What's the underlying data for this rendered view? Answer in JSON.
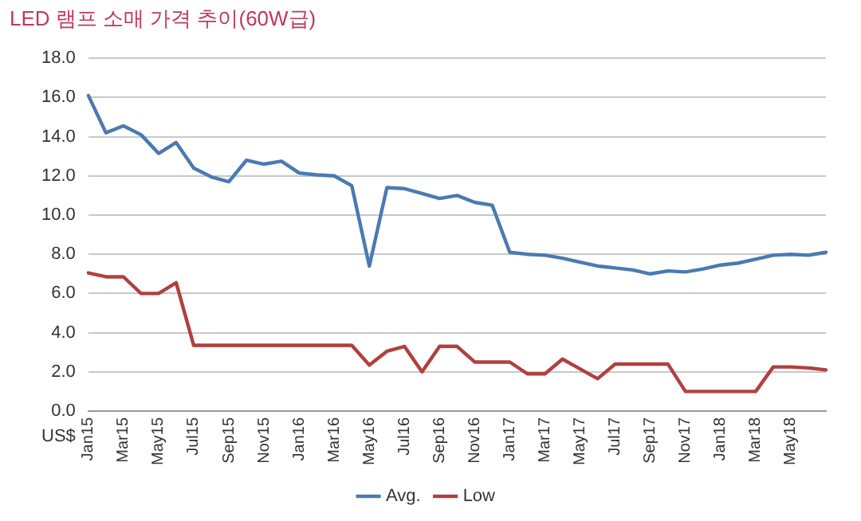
{
  "chart_data": {
    "type": "line",
    "title": "LED 램프 소매 가격 추이(60W급)",
    "ylabel": "US$",
    "categories": [
      "Jan15",
      null,
      "Mar15",
      null,
      "May15",
      null,
      "Jul15",
      null,
      "Sep15",
      null,
      "Nov15",
      null,
      "Jan16",
      null,
      "Mar16",
      null,
      "May16",
      null,
      "Jul16",
      null,
      "Sep16",
      null,
      "Nov16",
      null,
      "Jan17",
      null,
      "Mar17",
      null,
      "May17",
      null,
      "Jul17",
      null,
      "Sep17",
      null,
      "Nov17",
      null,
      "Jan18",
      null,
      "Mar18",
      null,
      "May18",
      null,
      null
    ],
    "series": [
      {
        "name": "Avg.",
        "color": "#4a7ab0",
        "values": [
          16.1,
          14.2,
          14.55,
          14.1,
          13.15,
          13.7,
          12.4,
          11.95,
          11.7,
          12.8,
          12.6,
          12.75,
          12.15,
          12.05,
          12.0,
          11.5,
          7.4,
          11.4,
          11.35,
          11.1,
          10.85,
          11.0,
          10.65,
          10.5,
          8.1,
          8.0,
          7.95,
          7.8,
          7.6,
          7.4,
          7.3,
          7.2,
          7.0,
          7.15,
          7.1,
          7.25,
          7.45,
          7.55,
          7.75,
          7.95,
          8.0,
          7.95,
          8.1
        ]
      },
      {
        "name": "Low",
        "color": "#b0413e",
        "values": [
          7.05,
          6.85,
          6.85,
          6.0,
          6.0,
          6.55,
          3.35,
          3.35,
          3.35,
          3.35,
          3.35,
          3.35,
          3.35,
          3.35,
          3.35,
          3.35,
          2.35,
          3.05,
          3.3,
          2.0,
          3.3,
          3.3,
          2.5,
          2.5,
          2.5,
          1.9,
          1.9,
          2.65,
          2.15,
          1.65,
          2.4,
          2.4,
          2.4,
          2.4,
          1.0,
          1.0,
          1.0,
          1.0,
          1.0,
          2.25,
          2.25,
          2.2,
          2.1
        ]
      }
    ],
    "ylim": [
      0,
      18
    ],
    "yticks": [
      {
        "value": 0,
        "label": "0.0"
      },
      {
        "value": 2,
        "label": "2.0"
      },
      {
        "value": 4,
        "label": "4.0"
      },
      {
        "value": 6,
        "label": "6.0"
      },
      {
        "value": 8,
        "label": "8.0"
      },
      {
        "value": 10,
        "label": "10.0"
      },
      {
        "value": 12,
        "label": "12.0"
      },
      {
        "value": 14,
        "label": "14.0"
      },
      {
        "value": 16,
        "label": "16.0"
      },
      {
        "value": 18,
        "label": "18.0"
      }
    ],
    "grid": "y",
    "legend": "bottom",
    "marker": "none",
    "line_style": "solid"
  }
}
